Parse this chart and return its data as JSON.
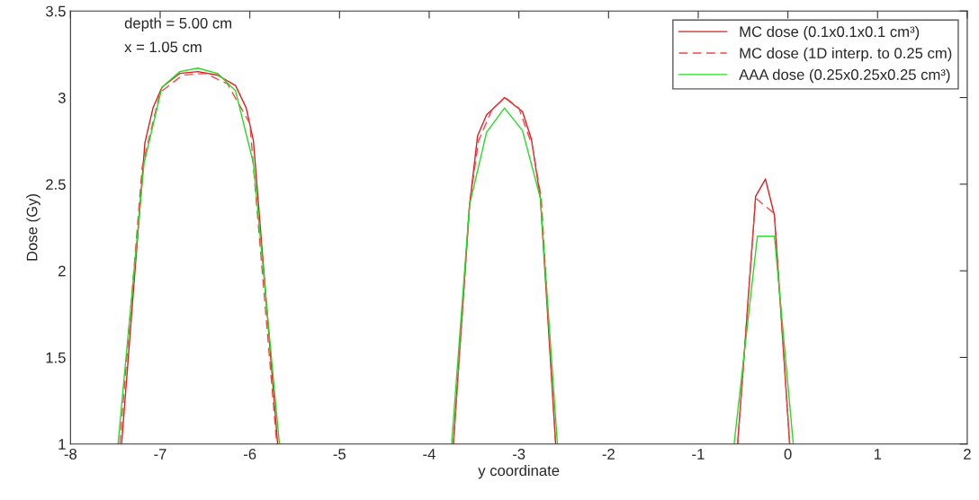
{
  "chart_data": {
    "type": "line",
    "xlabel": "y coordinate",
    "ylabel": "Dose (Gy)",
    "annotations": [
      "depth = 5.00 cm",
      "x = 1.05 cm"
    ],
    "xlim": [
      -8,
      2
    ],
    "ylim": [
      1,
      3.5
    ],
    "xticks": [
      -8,
      -7,
      -6,
      -5,
      -4,
      -3,
      -2,
      -1,
      0,
      1,
      2
    ],
    "yticks": [
      1,
      1.5,
      2,
      2.5,
      3,
      3.5
    ],
    "grid": false,
    "legend": "top right",
    "marker": "none",
    "series": [
      {
        "name": "MC dose (0.1x0.1x0.1 cm³)",
        "color": "#e41a1c",
        "line_style": "solid",
        "x": [
          -7.43,
          -7.17,
          -7.08,
          -6.98,
          -6.78,
          -6.58,
          -6.36,
          -6.16,
          -6.04,
          -5.96,
          -5.69,
          -4.5,
          -3.73,
          -3.55,
          -3.46,
          -3.36,
          -3.16,
          -2.96,
          -2.86,
          -2.76,
          -2.59,
          -1.5,
          -0.56,
          -0.36,
          -0.25,
          -0.15,
          0.02
        ],
        "values": [
          1.0,
          2.74,
          2.94,
          3.06,
          3.14,
          3.15,
          3.13,
          3.07,
          2.94,
          2.75,
          1.0,
          null,
          1.0,
          2.38,
          2.78,
          2.9,
          3.0,
          2.92,
          2.76,
          2.42,
          1.0,
          null,
          1.0,
          2.43,
          2.53,
          2.32,
          1.0
        ]
      },
      {
        "name": "MC dose (1D interp. to 0.25 cm)",
        "color": "#f04848",
        "line_style": "dashed",
        "x": [
          -7.45,
          -7.2,
          -7.0,
          -6.75,
          -6.5,
          -6.25,
          -6.0,
          -5.7,
          -4.5,
          -3.73,
          -3.55,
          -3.45,
          -3.3,
          -3.15,
          -3.0,
          -2.85,
          -2.75,
          -2.59,
          -1.5,
          -0.56,
          -0.36,
          -0.15,
          0.02
        ],
        "values": [
          1.0,
          2.6,
          3.03,
          3.13,
          3.14,
          3.08,
          2.85,
          1.0,
          null,
          1.0,
          2.38,
          2.75,
          2.93,
          3.0,
          2.94,
          2.72,
          2.42,
          1.0,
          null,
          1.0,
          2.42,
          2.33,
          1.0
        ]
      },
      {
        "name": "AAA dose (0.25x0.25x0.25 cm³)",
        "color": "#22dd22",
        "line_style": "solid",
        "x": [
          -7.47,
          -7.18,
          -6.98,
          -6.78,
          -6.58,
          -6.36,
          -6.16,
          -5.96,
          -5.67,
          -4.5,
          -3.75,
          -3.55,
          -3.36,
          -3.16,
          -2.96,
          -2.76,
          -2.57,
          -1.5,
          -0.6,
          -0.34,
          -0.15,
          0.06
        ],
        "values": [
          1.0,
          2.62,
          3.06,
          3.15,
          3.17,
          3.14,
          3.04,
          2.62,
          1.0,
          null,
          1.0,
          2.38,
          2.8,
          2.94,
          2.81,
          2.42,
          1.0,
          null,
          1.0,
          2.2,
          2.2,
          1.0
        ]
      }
    ]
  }
}
